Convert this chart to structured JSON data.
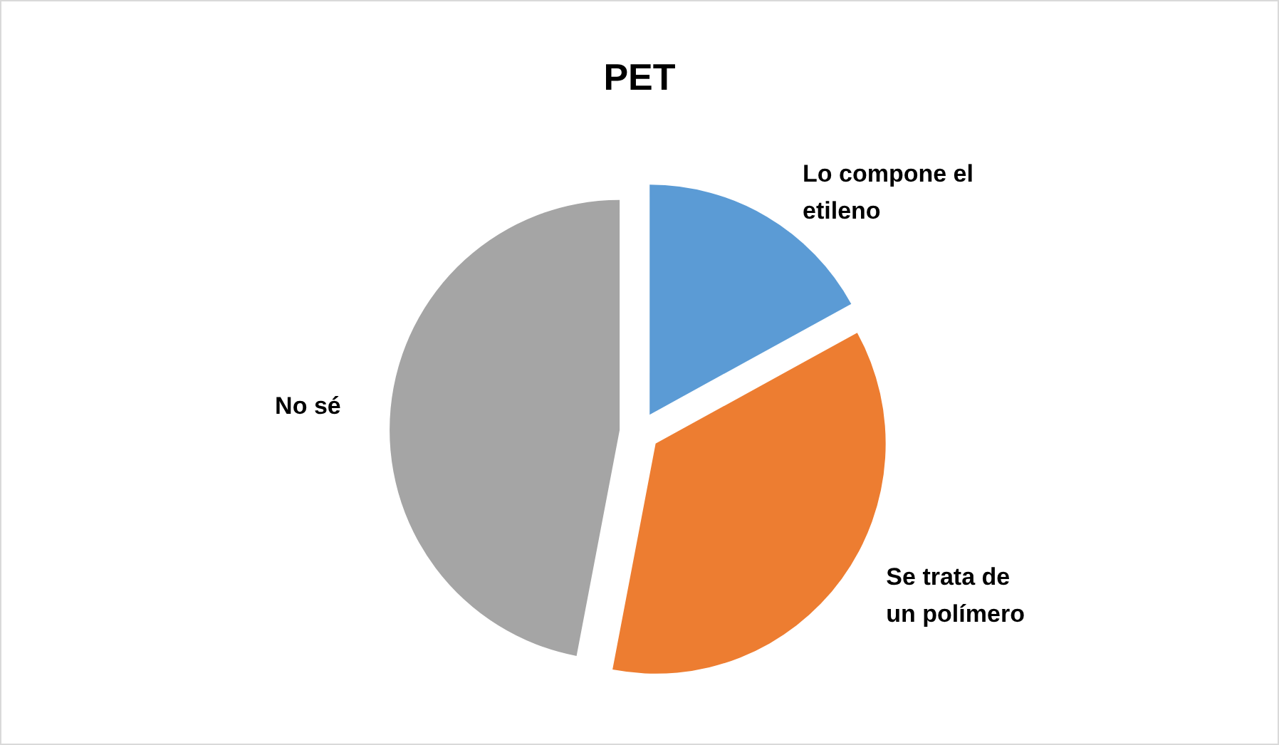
{
  "chart_data": {
    "type": "pie",
    "title": "PET",
    "categories": [
      "Lo compone el etileno",
      "Se trata de un polímero",
      "No sé"
    ],
    "values": [
      17,
      36,
      47
    ],
    "colors": [
      "#5b9bd5",
      "#ed7d31",
      "#a5a5a5"
    ]
  }
}
